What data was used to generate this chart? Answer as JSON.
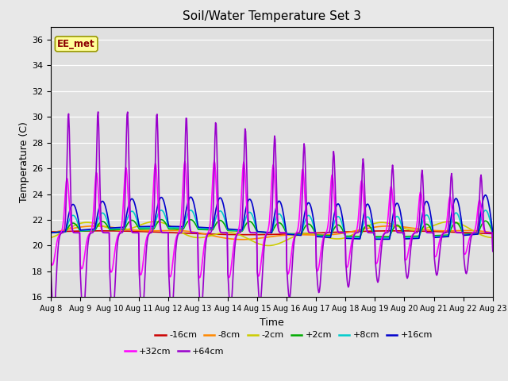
{
  "title": "Soil/Water Temperature Set 3",
  "xlabel": "Time",
  "ylabel": "Temperature (C)",
  "annotation": "EE_met",
  "ylim": [
    16,
    37
  ],
  "yticks": [
    16,
    18,
    20,
    22,
    24,
    26,
    28,
    30,
    32,
    34,
    36
  ],
  "fig_bg": "#e8e8e8",
  "plot_bg": "#e0e0e0",
  "series": [
    {
      "label": "-16cm",
      "color": "#cc0000",
      "lw": 1.2
    },
    {
      "label": "-8cm",
      "color": "#ff8800",
      "lw": 1.2
    },
    {
      "label": "-2cm",
      "color": "#cccc00",
      "lw": 1.2
    },
    {
      "label": "+2cm",
      "color": "#00aa00",
      "lw": 1.2
    },
    {
      "label": "+8cm",
      "color": "#00cccc",
      "lw": 1.2
    },
    {
      "label": "+16cm",
      "color": "#0000cc",
      "lw": 1.2
    },
    {
      "label": "+32cm",
      "color": "#ff00ff",
      "lw": 1.2
    },
    {
      "label": "+64cm",
      "color": "#9900cc",
      "lw": 1.2
    }
  ]
}
